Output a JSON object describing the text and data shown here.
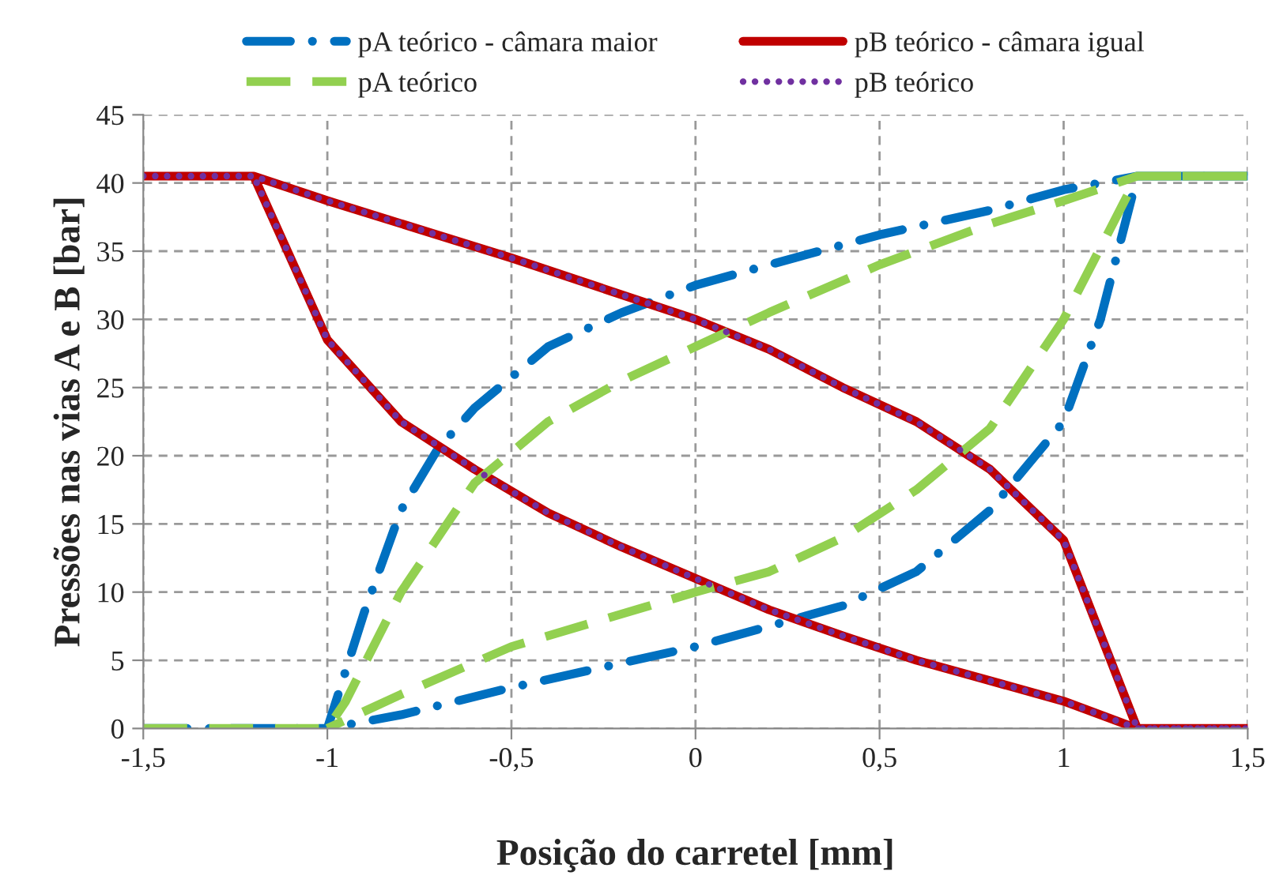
{
  "chart_data": {
    "type": "line",
    "xlabel": "Posição do carretel [mm]",
    "ylabel": "Pressões nas vias A e B [bar]",
    "xlim": [
      -1.5,
      1.5
    ],
    "xticks": [
      {
        "value": -1.5,
        "label": "-1,5"
      },
      {
        "value": -1,
        "label": "-1"
      },
      {
        "value": -0.5,
        "label": "-0,5"
      },
      0,
      {
        "value": 0.5,
        "label": "0,5"
      },
      1,
      {
        "value": 1.5,
        "label": "1,5"
      }
    ],
    "ylim": [
      0,
      45
    ],
    "yticks": [
      0,
      5,
      10,
      15,
      20,
      25,
      30,
      35,
      40,
      45
    ],
    "grid": true,
    "legend": "top",
    "series": [
      {
        "name": "pA teórico - câmara maior",
        "color": "#0070c0",
        "line_style": "dashdot",
        "x": [
          -1.5,
          -1,
          -0.9,
          -0.8,
          -0.7,
          -0.6,
          -0.4,
          -0.2,
          0,
          0.2,
          0.5,
          0.8,
          1,
          1.2,
          1.5,
          1.2,
          1.1,
          1,
          0.8,
          0.6,
          0.4,
          0.2,
          0,
          -0.5,
          -0.8,
          -1
        ],
        "values": [
          0,
          0,
          8.5,
          16,
          20.5,
          23.5,
          28,
          30.5,
          32.5,
          34,
          36.2,
          38,
          39.5,
          40.5,
          40.5,
          40.5,
          30,
          22.5,
          16,
          11.5,
          9,
          7.5,
          6,
          3,
          1,
          0
        ]
      },
      {
        "name": "pB teórico - câmara igual",
        "color": "#c00000",
        "line_style": "solid",
        "x": [
          -1.5,
          -1.2,
          -1,
          -0.5,
          0,
          0.2,
          0.4,
          0.6,
          0.8,
          1,
          1.2,
          1.5,
          1.2,
          1,
          0.8,
          0.6,
          0.4,
          0.2,
          0,
          -0.2,
          -0.4,
          -0.6,
          -0.8,
          -1,
          -1.2
        ],
        "values": [
          40.5,
          40.5,
          38.7,
          34.5,
          30,
          27.8,
          25,
          22.5,
          19,
          13.8,
          0,
          0,
          0,
          2,
          3.5,
          5,
          6.8,
          8.7,
          11,
          13.3,
          15.8,
          19,
          22.5,
          28.5,
          40.5
        ]
      },
      {
        "name": "pA teórico",
        "color": "#92d050",
        "line_style": "dashed",
        "x": [
          -1.5,
          -1,
          -0.95,
          -0.8,
          -0.6,
          -0.4,
          -0.2,
          0,
          0.2,
          0.5,
          0.8,
          1,
          1.2,
          1.5,
          1.2,
          1,
          0.8,
          0.6,
          0.4,
          0.2,
          0,
          -0.5,
          -0.8,
          -1
        ],
        "values": [
          0,
          0,
          2,
          10,
          18,
          22.5,
          25.5,
          28,
          30.5,
          34,
          37,
          38.7,
          40.5,
          40.5,
          40.5,
          30,
          22,
          17.5,
          14,
          11.5,
          10,
          6,
          2.5,
          0
        ]
      },
      {
        "name": "pB teórico",
        "color": "#7030a0",
        "line_style": "dotted",
        "x": [
          -1.5,
          -1.2,
          -1,
          -0.5,
          0,
          0.2,
          0.4,
          0.6,
          0.8,
          1,
          1.2,
          1.5,
          1.2,
          1,
          0.8,
          0.6,
          0.4,
          0.2,
          0,
          -0.2,
          -0.4,
          -0.6,
          -0.8,
          -1,
          -1.2
        ],
        "values": [
          40.5,
          40.5,
          38.7,
          34.5,
          30,
          27.8,
          25,
          22.5,
          19,
          13.8,
          0,
          0,
          0,
          2,
          3.5,
          5,
          6.8,
          8.7,
          11,
          13.3,
          15.8,
          19,
          22.5,
          28.5,
          40.5
        ]
      }
    ]
  }
}
